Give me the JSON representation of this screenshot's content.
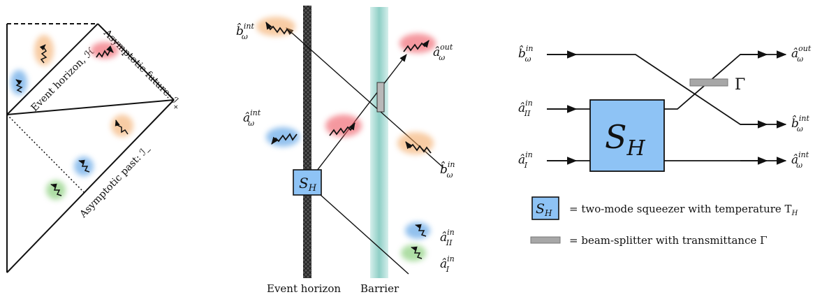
{
  "penrose": {
    "event_horizon": "Event horizon, ℋ",
    "future": "Asymptotic future: ℐ",
    "future_sub": "+",
    "past": "Asymptotic past: ℐ",
    "past_sub": "−"
  },
  "spacetime": {
    "event_horizon_label": "Event horizon",
    "barrier_label": "Barrier",
    "squeezer_label": "S",
    "squeezer_sub": "H",
    "b_int": {
      "base": "b̂",
      "sup": "int",
      "sub": "ω"
    },
    "a_out": {
      "base": "â",
      "sup": "out",
      "sub": "ω"
    },
    "a_int": {
      "base": "â",
      "sup": "int",
      "sub": "ω"
    },
    "b_in": {
      "base": "b̂",
      "sup": "in",
      "sub": "ω"
    },
    "a_II_in": {
      "base": "â",
      "sup": "in",
      "sub": "II"
    },
    "a_I_in": {
      "base": "â",
      "sup": "in",
      "sub": "I"
    }
  },
  "circuit": {
    "in_b": {
      "base": "b̂",
      "sup": "in",
      "sub": "ω"
    },
    "in_aII": {
      "base": "â",
      "sup": "in",
      "sub": "II"
    },
    "in_aI": {
      "base": "â",
      "sup": "in",
      "sub": "I"
    },
    "out_a": {
      "base": "â",
      "sup": "out",
      "sub": "ω"
    },
    "out_b": {
      "base": "b̂",
      "sup": "int",
      "sub": "ω"
    },
    "out_aint": {
      "base": "â",
      "sup": "int",
      "sub": "ω"
    },
    "gamma": "Γ",
    "squeezer_label": "S",
    "squeezer_sub": "H",
    "legend": {
      "sq_label": "S",
      "sq_sub": "H",
      "sq_text": "= two-mode squeezer with temperature T",
      "sq_text_sub": "H",
      "bs_text": "= beam-splitter with transmittance Γ"
    }
  },
  "colors": {
    "orange": "#f2a35a",
    "red": "#ee5561",
    "blue": "#3b8fe0",
    "green": "#6cc25a",
    "squeezer": "#8ec3f5",
    "barrier": "#9fd6d0",
    "splitter": "#a7a7a7"
  }
}
